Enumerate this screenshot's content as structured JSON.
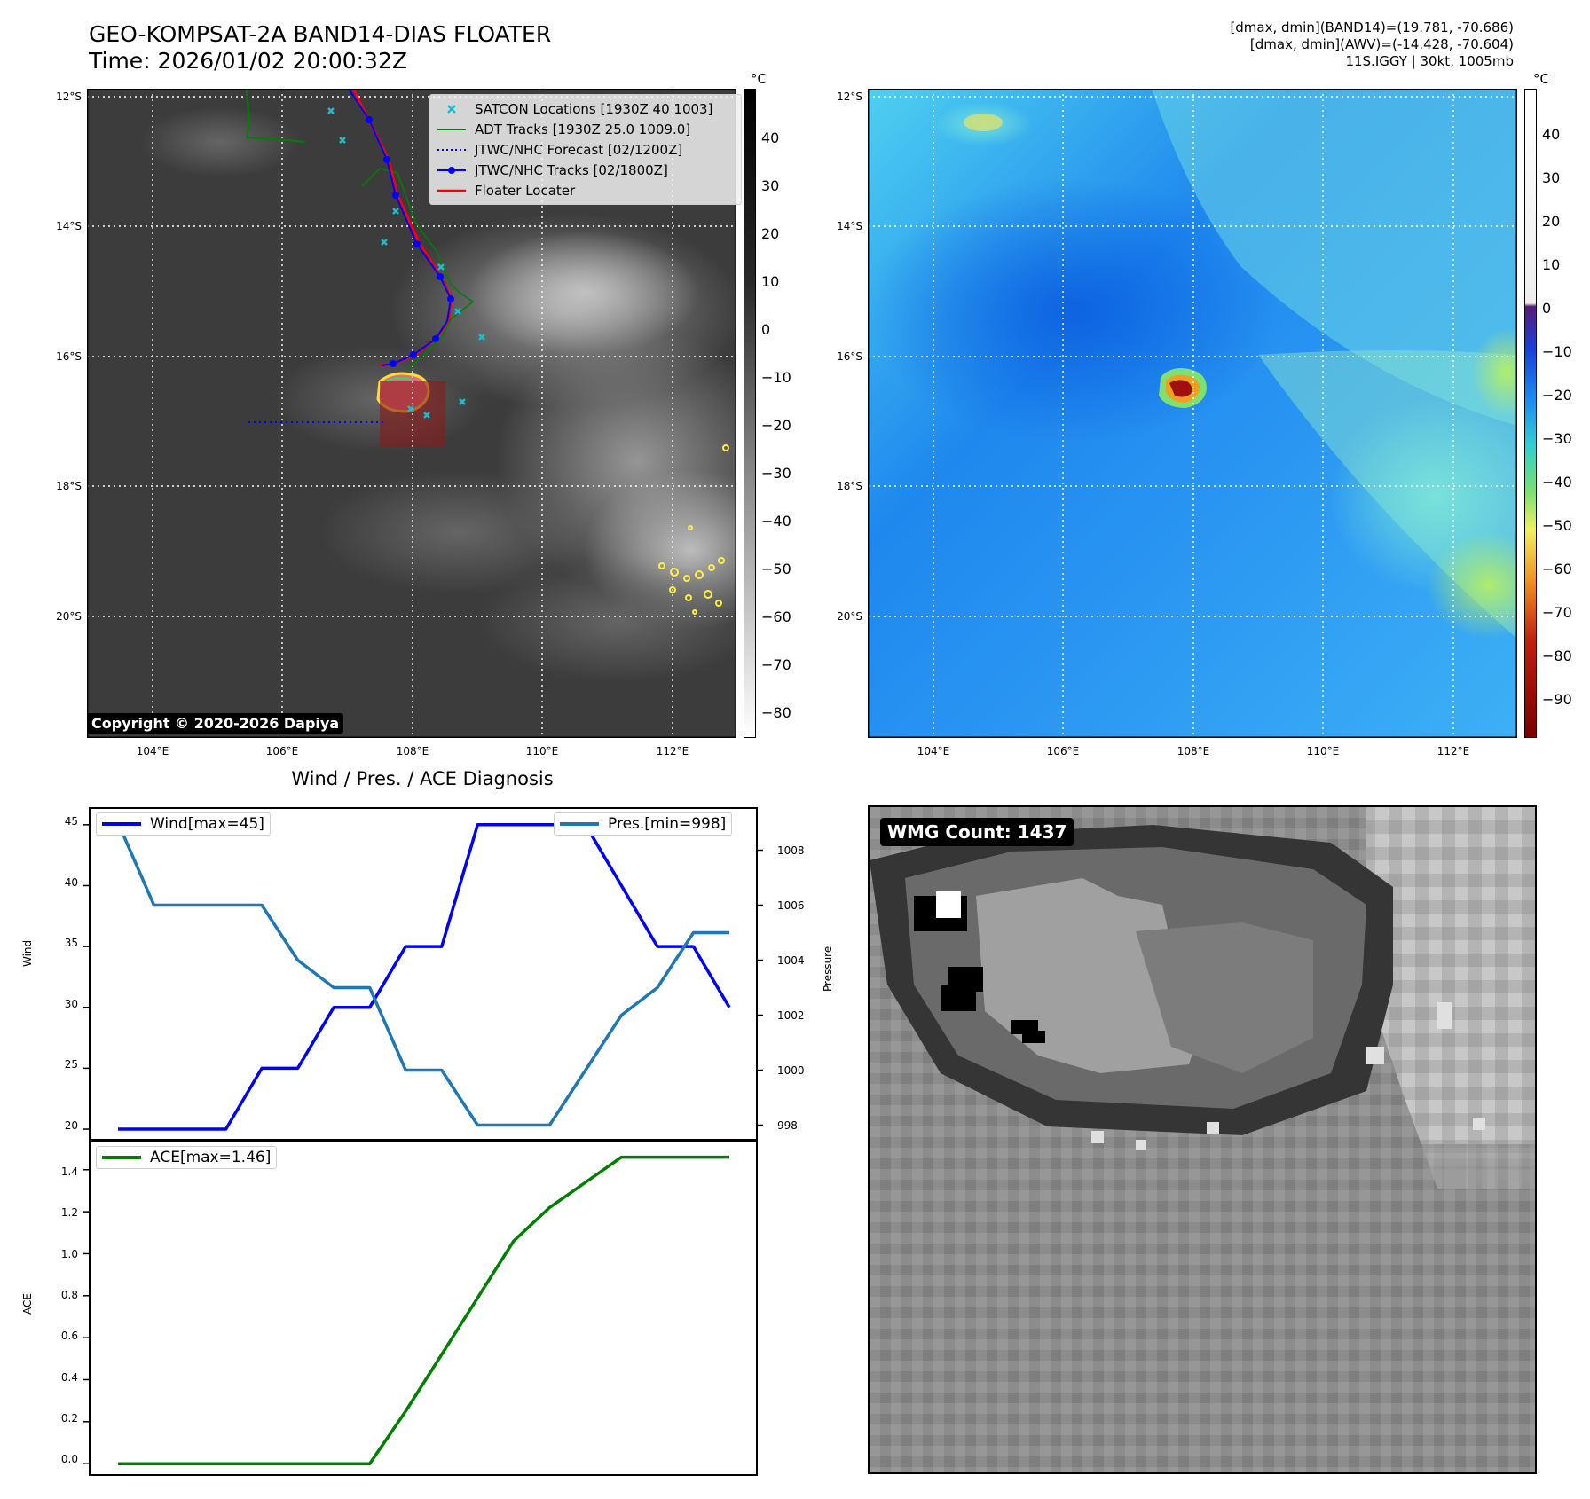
{
  "header": {
    "title_line1": "GEO-KOMPSAT-2A BAND14-DIAS FLOATER",
    "title_line2": "Time: 2026/01/02 20:00:32Z",
    "info_line1": "[dmax, dmin](BAND14)=(19.781, -70.686)",
    "info_line2": "[dmax, dmin](AWV)=(-14.428, -70.604)",
    "info_line3": "11S.IGGY | 30kt, 1005mb"
  },
  "map_axes": {
    "lat_labels": [
      "12°S",
      "14°S",
      "16°S",
      "18°S",
      "20°S"
    ],
    "lon_labels": [
      "104°E",
      "106°E",
      "108°E",
      "110°E",
      "112°E"
    ]
  },
  "left_map": {
    "legend": [
      {
        "label": "SATCON Locations [1930Z 40 1003]",
        "color": "#17becf",
        "style": "x-marker"
      },
      {
        "label": "ADT Tracks [1930Z 25.0 1009.0]",
        "color": "#008000",
        "style": "line"
      },
      {
        "label": "JTWC/NHC Forecast [02/1200Z]",
        "color": "#0000ff",
        "style": "dotted"
      },
      {
        "label": "JTWC/NHC Tracks [02/1800Z]",
        "color": "#0000ff",
        "style": "line-dot"
      },
      {
        "label": "Floater Locater",
        "color": "#ff0000",
        "style": "line"
      }
    ],
    "copyright": "Copyright © 2020-2026 Dapiya",
    "colorbar": {
      "unit": "°C",
      "ticks": [
        "40",
        "30",
        "20",
        "10",
        "0",
        "−10",
        "−20",
        "−30",
        "−40",
        "−50",
        "−60",
        "−70",
        "−80"
      ]
    }
  },
  "right_map": {
    "colorbar": {
      "unit": "°C",
      "ticks": [
        "40",
        "30",
        "20",
        "10",
        "0",
        "−10",
        "−20",
        "−30",
        "−40",
        "−50",
        "−60",
        "−70",
        "−80",
        "−90"
      ]
    }
  },
  "diagnosis": {
    "title": "Wind / Pres. / ACE Diagnosis",
    "wind_legend": "Wind[max=45]",
    "pres_legend": "Pres.[min=998]",
    "ace_legend": "ACE[max=1.46]",
    "wind_axis_label": "Wind",
    "pres_axis_label": "Pressure",
    "ace_axis_label": "ACE",
    "wind_ticks": [
      "20",
      "25",
      "30",
      "35",
      "40",
      "45"
    ],
    "pres_ticks": [
      "998",
      "1000",
      "1002",
      "1004",
      "1006",
      "1008"
    ],
    "ace_ticks": [
      "0.0",
      "0.2",
      "0.4",
      "0.6",
      "0.8",
      "1.0",
      "1.2",
      "1.4"
    ]
  },
  "wmg": {
    "label": "WMG Count: 1437"
  },
  "colors": {
    "wind": "#0000ff",
    "pressure": "#1f77b4",
    "ace": "#008000"
  },
  "chart_data": [
    {
      "type": "line",
      "title": "Wind / Pres. / ACE Diagnosis",
      "x": [
        0,
        1,
        2,
        3,
        4,
        5,
        6,
        7,
        8,
        9,
        10,
        11,
        12,
        13,
        14,
        15,
        16,
        17
      ],
      "series": [
        {
          "name": "Wind[max=45]",
          "axis": "left",
          "values": [
            20,
            20,
            20,
            20,
            25,
            25,
            30,
            30,
            35,
            35,
            45,
            45,
            45,
            45,
            40,
            35,
            35,
            30
          ]
        },
        {
          "name": "Pres.[min=998]",
          "axis": "right",
          "values": [
            1009,
            1006,
            1006,
            1006,
            1006,
            1004,
            1003,
            1003,
            1000,
            1000,
            998,
            998,
            998,
            1000,
            1002,
            1003,
            1005,
            1005
          ]
        }
      ],
      "ylabel": "Wind",
      "y2label": "Pressure",
      "ylim": [
        19.2,
        46.3
      ],
      "y2lim": [
        997.5,
        1009.5
      ]
    },
    {
      "type": "line",
      "x": [
        0,
        1,
        2,
        3,
        4,
        5,
        6,
        7,
        8,
        9,
        10,
        11,
        12,
        13,
        14,
        15,
        16,
        17
      ],
      "series": [
        {
          "name": "ACE[max=1.46]",
          "values": [
            0,
            0,
            0,
            0,
            0,
            0,
            0,
            0,
            0.25,
            0.52,
            0.79,
            1.06,
            1.22,
            1.34,
            1.46,
            1.46,
            1.46,
            1.46
          ]
        }
      ],
      "ylabel": "ACE",
      "ylim": [
        -0.05,
        1.53
      ]
    }
  ]
}
